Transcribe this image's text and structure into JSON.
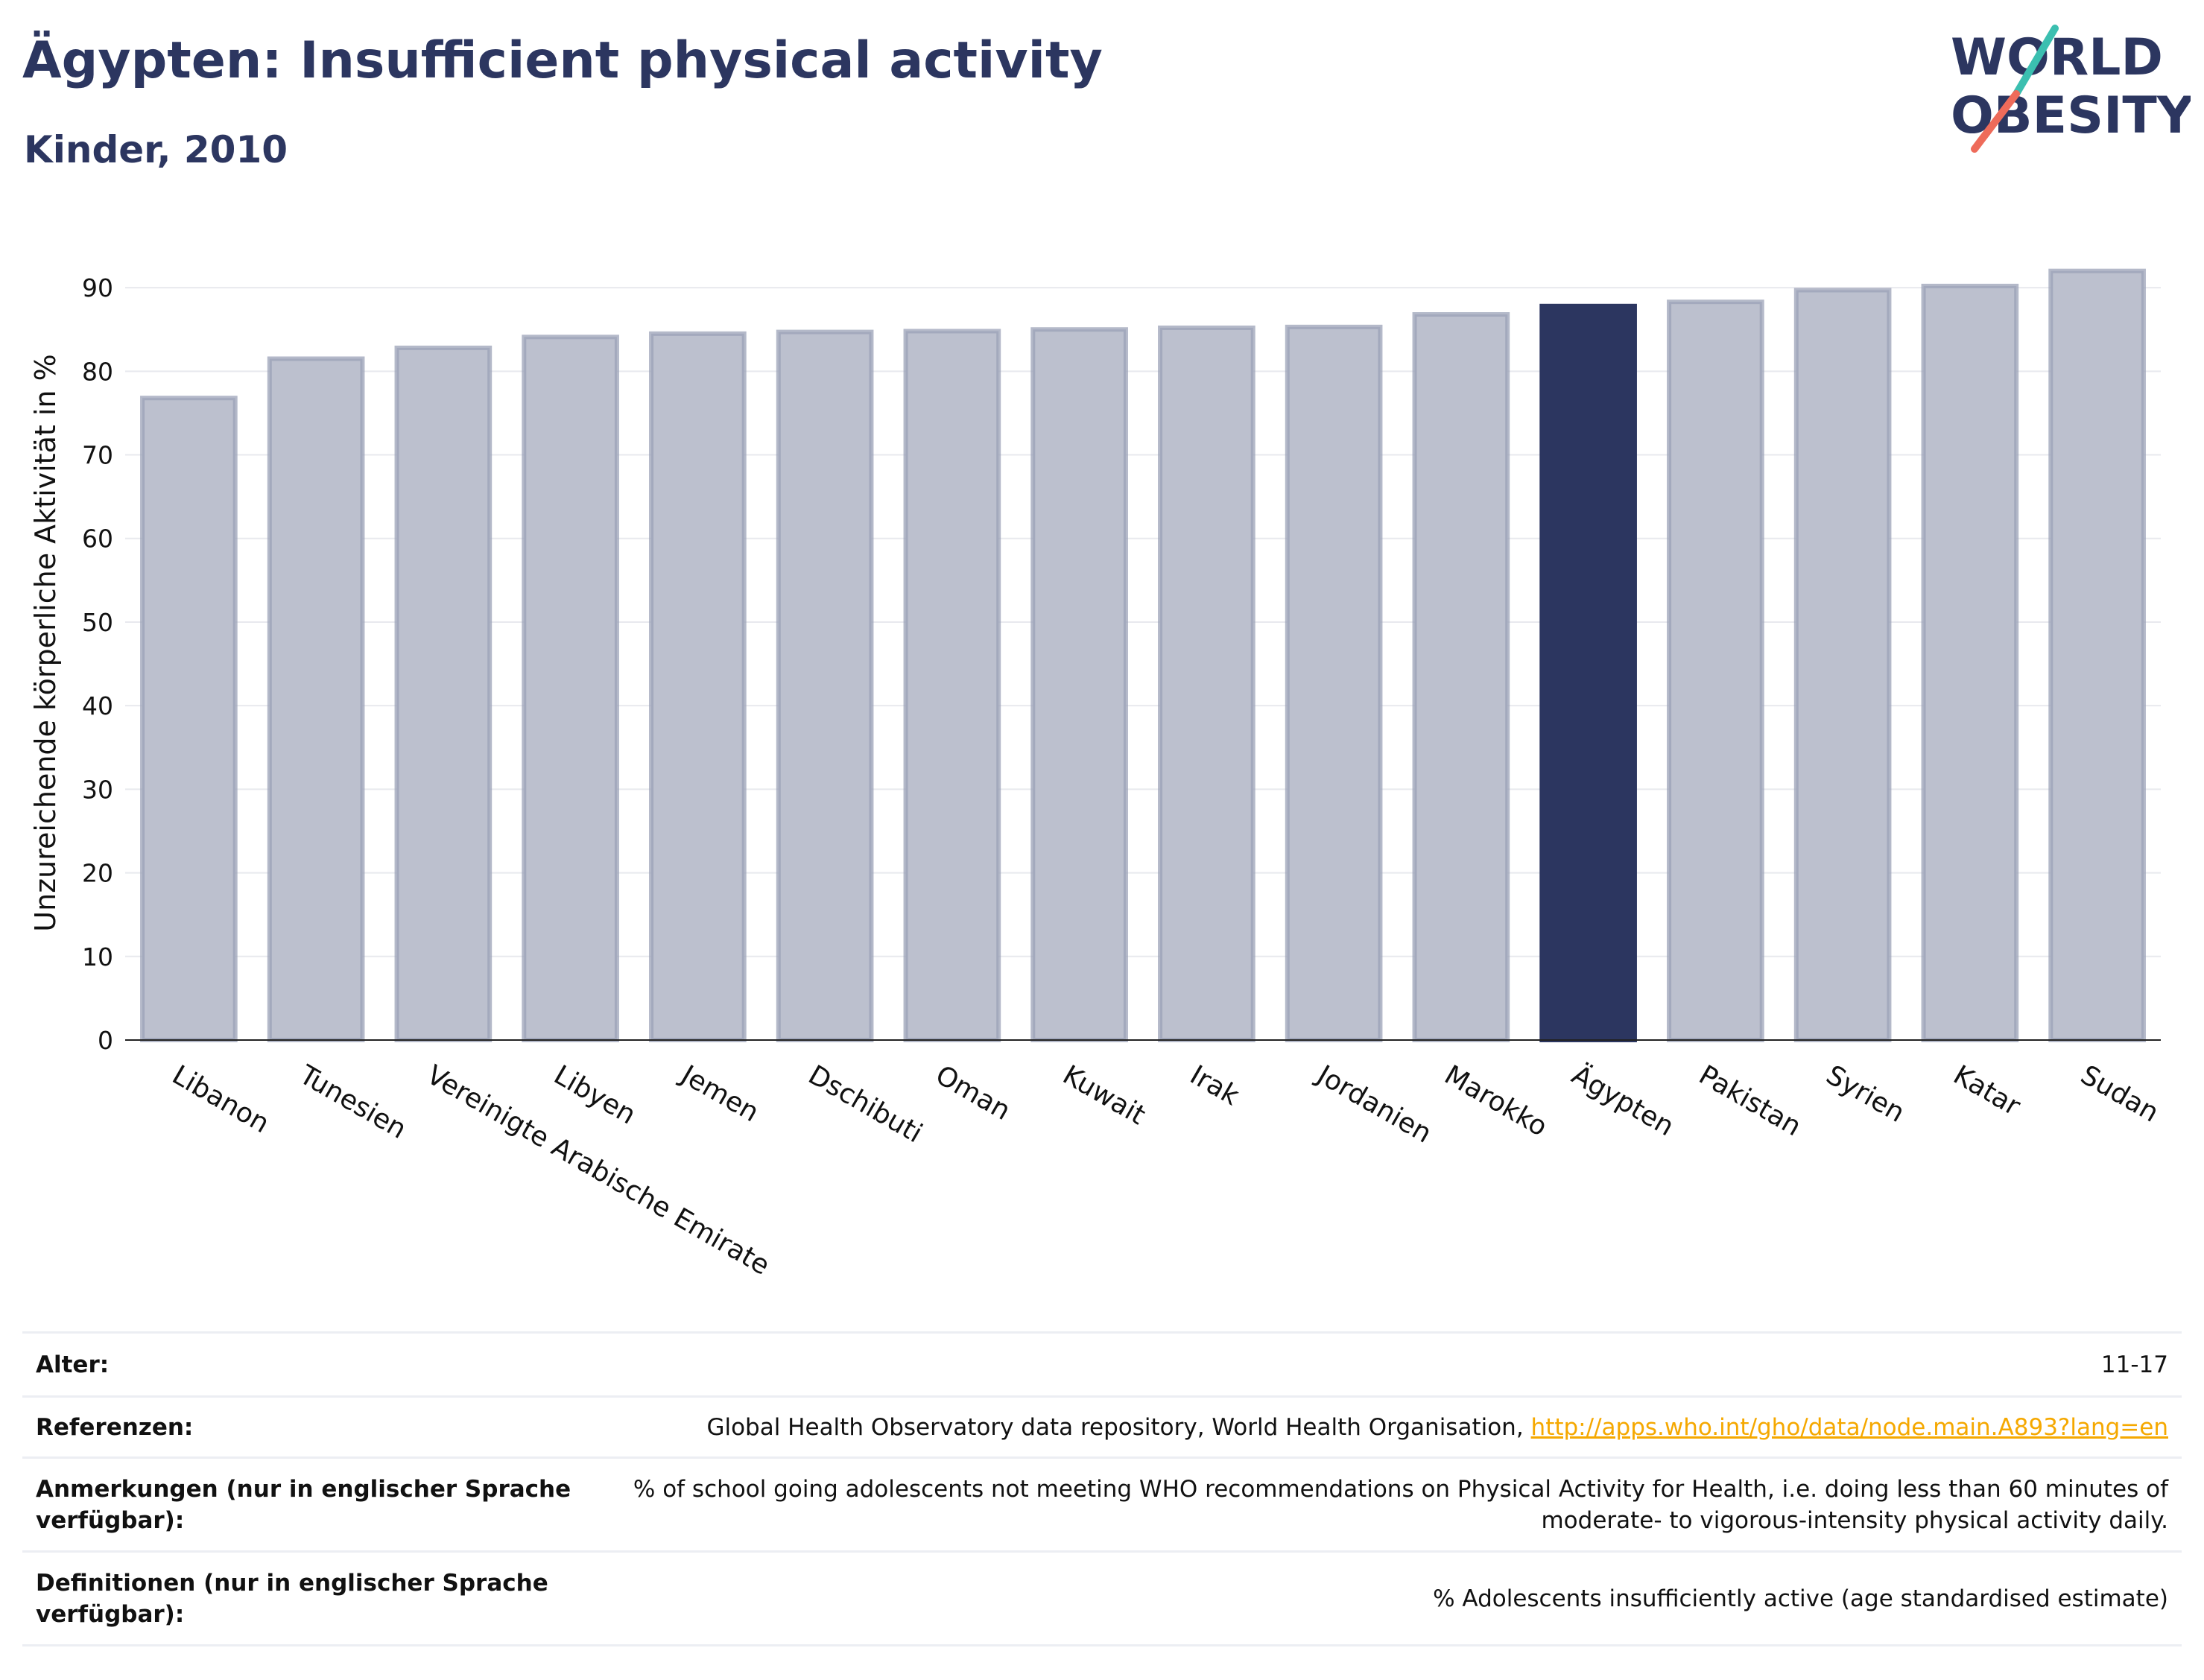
{
  "header": {
    "title": "Ägypten: Insufficient physical activity",
    "subtitle": "Kinder, 2010"
  },
  "logo": {
    "line1": "WORLD",
    "line2": "OBESITY",
    "colors": {
      "text": "#2c3660",
      "slash_top": "#3bbfb0",
      "slash_bottom": "#ee6b5a"
    }
  },
  "chart_data": {
    "type": "bar",
    "title": "",
    "xlabel": "",
    "ylabel": "Unzureichende körperliche Aktivität in %",
    "ylim": [
      0,
      95
    ],
    "yticks": [
      0,
      10,
      20,
      30,
      40,
      50,
      60,
      70,
      80,
      90
    ],
    "grid": true,
    "categories": [
      "Libanon",
      "Tunesien",
      "Vereinigte Arabische Emirate",
      "Libyen",
      "Jemen",
      "Dschibuti",
      "Oman",
      "Kuwait",
      "Irak",
      "Jordanien",
      "Marokko",
      "Ägypten",
      "Pakistan",
      "Syrien",
      "Katar",
      "Sudan"
    ],
    "values": [
      76.8,
      81.5,
      82.8,
      84.1,
      84.5,
      84.7,
      84.8,
      85.0,
      85.2,
      85.3,
      86.8,
      87.8,
      88.3,
      89.7,
      90.2,
      92.0
    ],
    "highlight": "Ägypten",
    "colors": {
      "bar": "#bcc0ce",
      "bar_edge": "#9ba1b7",
      "highlight": "#2c3660"
    }
  },
  "info": [
    {
      "label": "Alter:",
      "value": "11-17"
    },
    {
      "label": "Referenzen:",
      "value": "Global Health Observatory data repository, World Health Organisation, ",
      "link": "http://apps.who.int/gho/data/node.main.A893?lang=en"
    },
    {
      "label": "Anmerkungen (nur in englischer Sprache verfügbar):",
      "value": "% of school going adolescents not meeting WHO recommendations on Physical Activity for Health, i.e. doing less than 60 minutes of moderate- to vigorous-intensity physical activity daily."
    },
    {
      "label": "Definitionen (nur in englischer Sprache verfügbar):",
      "value": "% Adolescents insufficiently active (age standardised estimate)"
    }
  ]
}
